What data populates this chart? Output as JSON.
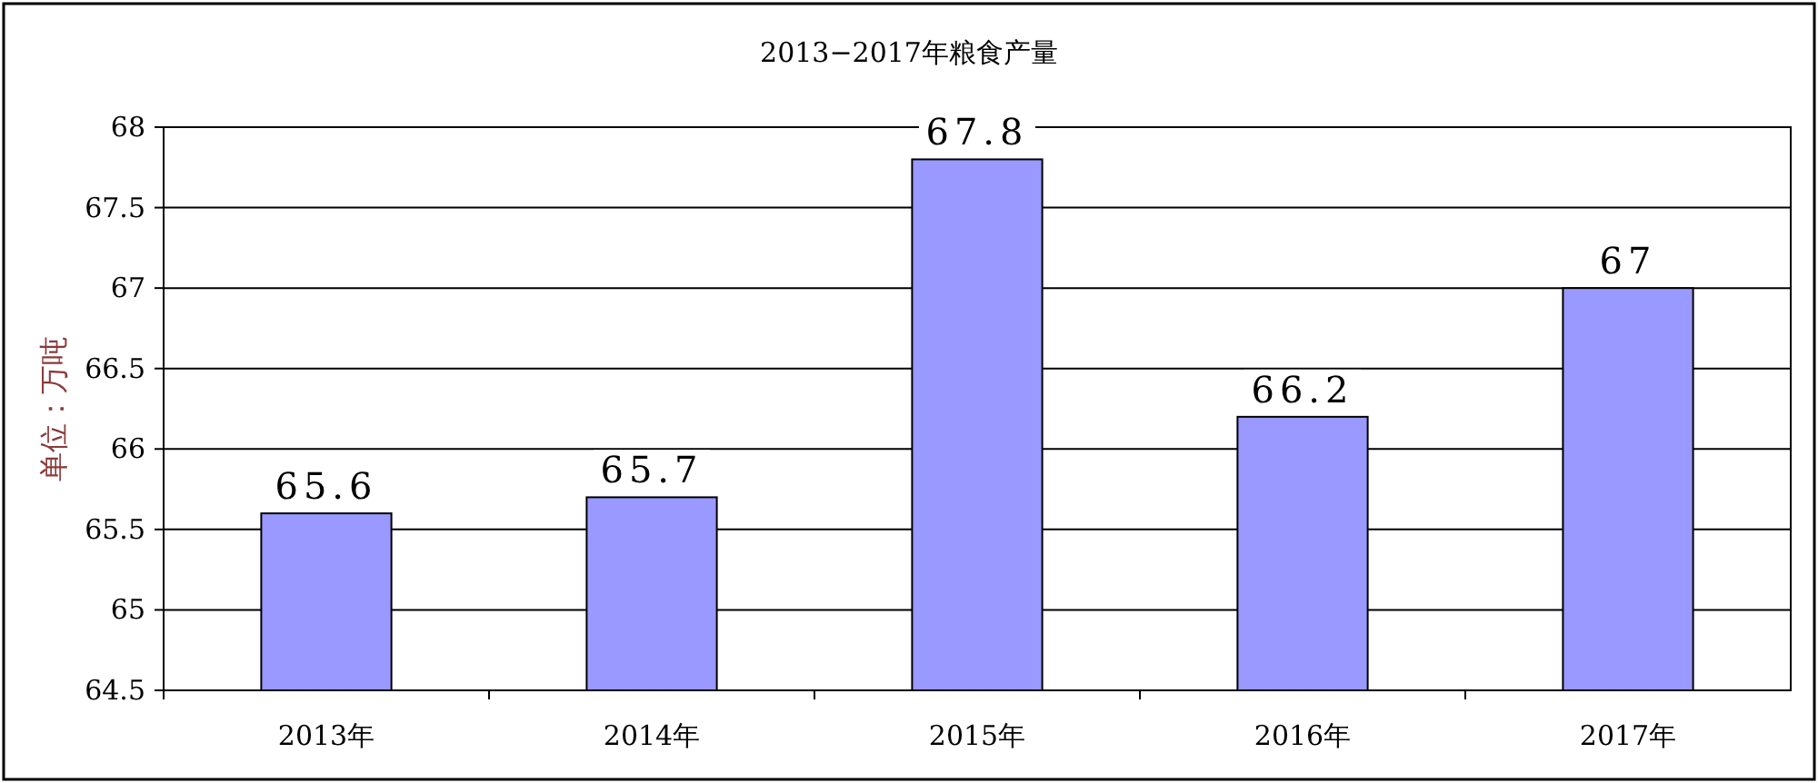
{
  "chart_data": {
    "type": "bar",
    "title": "2013−2017年粮食产量",
    "ylabel": "单位：万吨",
    "categories": [
      "2013年",
      "2014年",
      "2015年",
      "2016年",
      "2017年"
    ],
    "values": [
      65.6,
      65.7,
      67.8,
      66.2,
      67
    ],
    "color": "#9999ff",
    "ylim": [
      64.5,
      68
    ],
    "yticks": [
      64.5,
      65,
      65.5,
      66,
      66.5,
      67,
      67.5,
      68
    ],
    "grid": "y",
    "data_labels": true
  }
}
